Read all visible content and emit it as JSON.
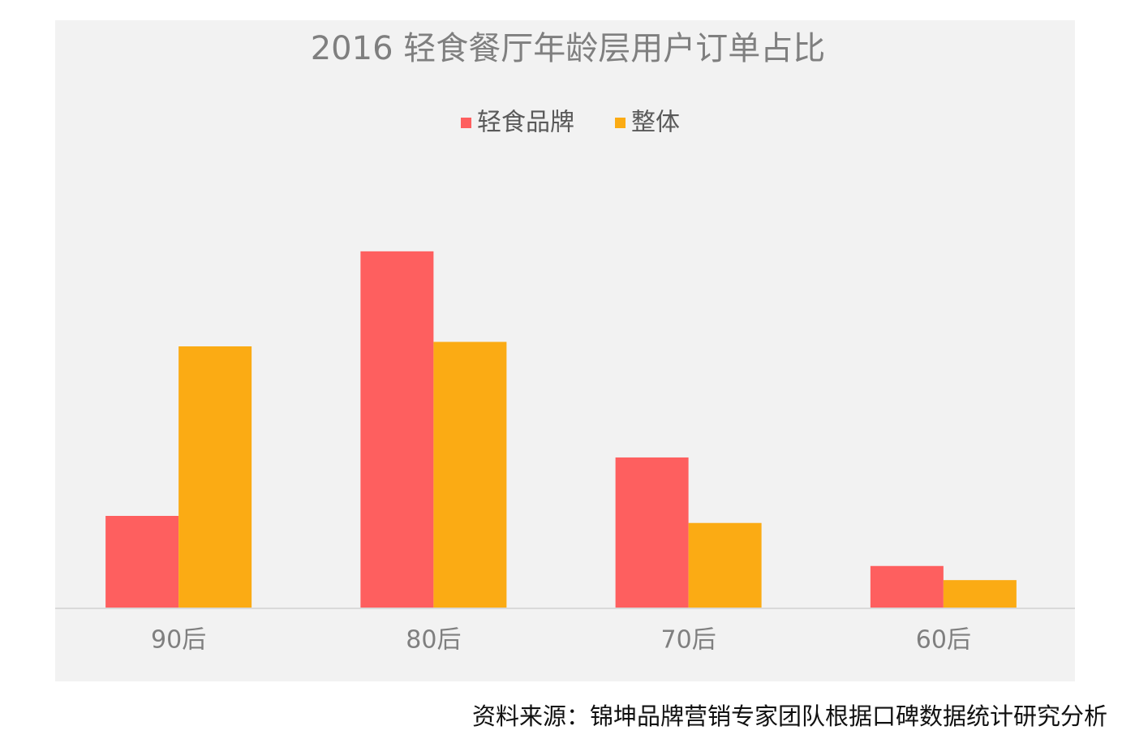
{
  "chart_data": {
    "type": "bar",
    "title": "2016 轻食餐厅年龄层用户订单占比",
    "categories": [
      "90后",
      "80后",
      "70后",
      "60后"
    ],
    "series": [
      {
        "name": "轻食品牌",
        "color": "#fe5f5f",
        "values": [
          14.4,
          55.6,
          23.5,
          6.6
        ]
      },
      {
        "name": "整体",
        "color": "#fbab14",
        "values": [
          40.8,
          41.5,
          13.3,
          4.4
        ]
      }
    ],
    "ylim": [
      0,
      60
    ],
    "source": "资料来源：锦坤品牌营销专家团队根据口碑数据统计研究分析"
  }
}
